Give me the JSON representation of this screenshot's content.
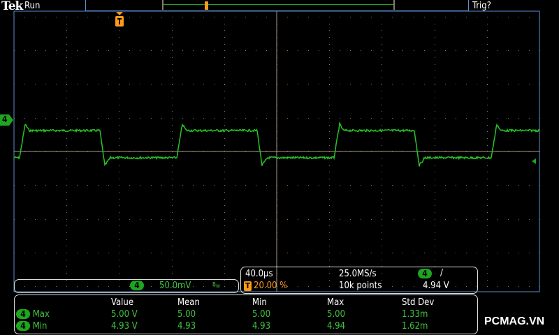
{
  "header": {
    "logo": "Tek",
    "status": "Run",
    "trigger_status": "Trig?"
  },
  "channel": {
    "number": "4",
    "scale": "50.0mV",
    "bw_icon": "bandwidth-limit-icon",
    "color": "#1fa51f"
  },
  "timebase": {
    "horizontal_scale": "40.0µs",
    "sample_rate": "25.0MS/s",
    "trigger_position": "20.00 %",
    "record_length": "10k points"
  },
  "trigger": {
    "source": "4",
    "slope": "rising-edge-icon",
    "level": "4.94 V"
  },
  "measurements": {
    "headers": [
      "Value",
      "Mean",
      "Min",
      "Max",
      "Std Dev"
    ],
    "rows": [
      {
        "channel": "4",
        "label": "Max",
        "value": "5.00 V",
        "mean": "5.00",
        "min": "5.00",
        "max": "5.00",
        "std_dev": "1.33m"
      },
      {
        "channel": "4",
        "label": "Min",
        "value": "4.93 V",
        "mean": "4.93",
        "min": "4.93",
        "max": "4.94",
        "std_dev": "1.62m"
      }
    ]
  },
  "watermark": "PCMAG.VN"
}
